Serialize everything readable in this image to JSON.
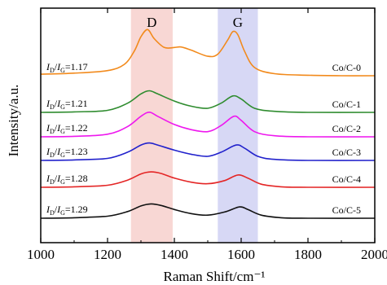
{
  "chart_data": {
    "type": "line",
    "xlabel": "Raman Shift/cm⁻¹",
    "ylabel": "Intensity/a.u.",
    "xlim": [
      1000,
      2000
    ],
    "xticks": [
      "1000",
      "1200",
      "1400",
      "1600",
      "1800",
      "2000"
    ],
    "y_ticks_shown": false,
    "grid": false,
    "bands": [
      {
        "label": "D",
        "x_range": [
          1270,
          1395
        ],
        "color": "#f6c9c6"
      },
      {
        "label": "G",
        "x_range": [
          1530,
          1650
        ],
        "color": "#c9cbf2"
      }
    ],
    "series": [
      {
        "name": "Co/C-0",
        "ratio": "I_D/I_G=1.17",
        "color": "#f28a1c",
        "x": [
          1000,
          1100,
          1200,
          1250,
          1280,
          1300,
          1320,
          1340,
          1370,
          1400,
          1420,
          1450,
          1500,
          1530,
          1560,
          1575,
          1590,
          1610,
          1640,
          1700,
          1800,
          1900,
          2000
        ],
        "y": [
          0.03,
          0.05,
          0.1,
          0.22,
          0.48,
          0.76,
          0.9,
          0.72,
          0.55,
          0.55,
          0.56,
          0.5,
          0.38,
          0.42,
          0.7,
          0.86,
          0.8,
          0.48,
          0.16,
          0.04,
          0.01,
          0.0,
          0.0
        ]
      },
      {
        "name": "Co/C-1",
        "ratio": "I_D/I_G=1.21",
        "color": "#2f8c2f",
        "x": [
          1000,
          1100,
          1200,
          1260,
          1300,
          1325,
          1350,
          1400,
          1450,
          1500,
          1540,
          1575,
          1600,
          1640,
          1700,
          1800,
          2000
        ],
        "y": [
          0.0,
          0.01,
          0.04,
          0.18,
          0.36,
          0.42,
          0.36,
          0.22,
          0.12,
          0.08,
          0.18,
          0.32,
          0.26,
          0.08,
          0.02,
          0.0,
          0.0
        ]
      },
      {
        "name": "Co/C-2",
        "ratio": "I_D/I_G=1.22",
        "color": "#ee18ee",
        "x": [
          1000,
          1100,
          1200,
          1260,
          1300,
          1325,
          1350,
          1400,
          1450,
          1500,
          1540,
          1578,
          1600,
          1640,
          1700,
          1800,
          2000
        ],
        "y": [
          0.0,
          0.01,
          0.05,
          0.2,
          0.4,
          0.48,
          0.4,
          0.24,
          0.14,
          0.1,
          0.22,
          0.4,
          0.32,
          0.1,
          0.02,
          0.0,
          0.0
        ]
      },
      {
        "name": "Co/C-3",
        "ratio": "I_D/I_G=1.23",
        "color": "#2222cc",
        "x": [
          1000,
          1100,
          1200,
          1260,
          1300,
          1325,
          1350,
          1400,
          1450,
          1500,
          1540,
          1585,
          1610,
          1650,
          1700,
          1800,
          2000
        ],
        "y": [
          0.0,
          0.01,
          0.04,
          0.16,
          0.3,
          0.34,
          0.3,
          0.2,
          0.12,
          0.08,
          0.16,
          0.3,
          0.24,
          0.08,
          0.02,
          0.0,
          0.0
        ]
      },
      {
        "name": "Co/C-4",
        "ratio": "I_D/I_G=1.28",
        "color": "#e42626",
        "x": [
          1000,
          1100,
          1200,
          1260,
          1300,
          1330,
          1360,
          1400,
          1450,
          1500,
          1550,
          1590,
          1620,
          1660,
          1720,
          1800,
          2000
        ],
        "y": [
          0.0,
          0.01,
          0.04,
          0.14,
          0.26,
          0.3,
          0.27,
          0.18,
          0.1,
          0.07,
          0.13,
          0.24,
          0.18,
          0.06,
          0.01,
          0.0,
          0.0
        ]
      },
      {
        "name": "Co/C-5",
        "ratio": "I_D/I_G=1.29",
        "color": "#111111",
        "x": [
          1000,
          1100,
          1200,
          1260,
          1300,
          1330,
          1360,
          1400,
          1450,
          1500,
          1550,
          1595,
          1620,
          1660,
          1720,
          1800,
          2000
        ],
        "y": [
          0.0,
          0.01,
          0.04,
          0.13,
          0.24,
          0.28,
          0.25,
          0.17,
          0.09,
          0.06,
          0.12,
          0.22,
          0.17,
          0.06,
          0.01,
          0.0,
          0.0
        ]
      }
    ]
  }
}
